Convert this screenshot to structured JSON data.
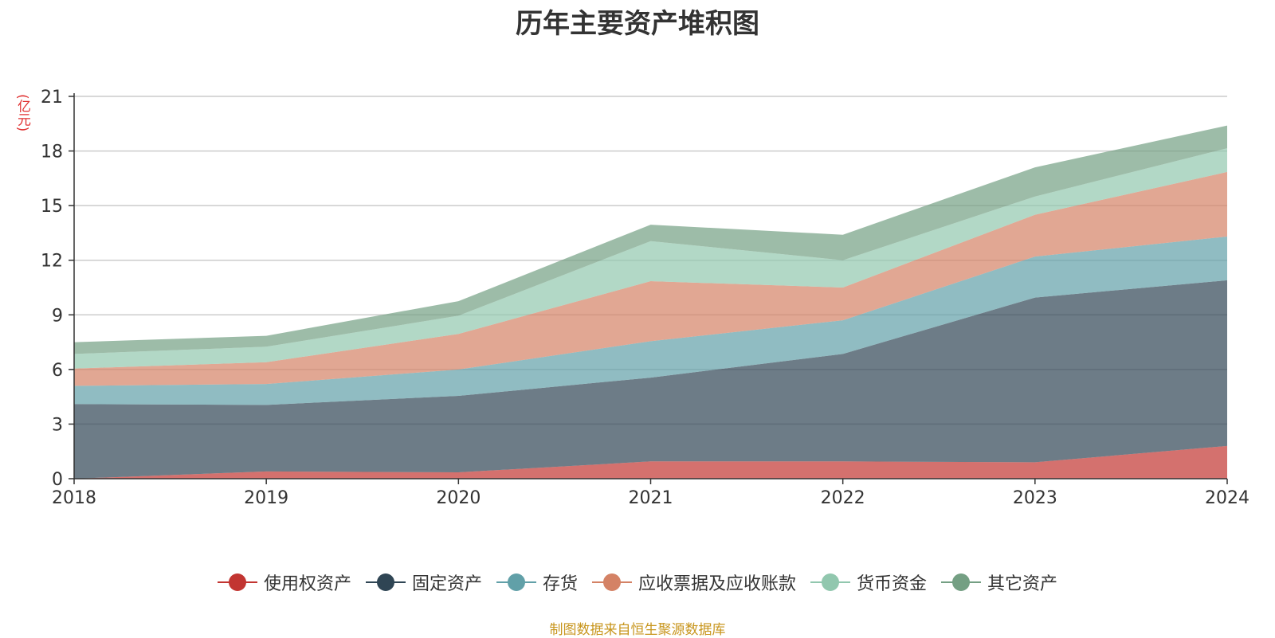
{
  "chart_data": {
    "type": "area",
    "stacked": true,
    "title": "历年主要资产堆积图",
    "ylabel": "(亿元)",
    "x": [
      "2018",
      "2019",
      "2020",
      "2021",
      "2022",
      "2023",
      "2024"
    ],
    "yticks": [
      "0",
      "3",
      "6",
      "9",
      "12",
      "15",
      "18",
      "21"
    ],
    "ylim": [
      0,
      21
    ],
    "grid": true,
    "legend_position": "bottom",
    "series": [
      {
        "name": "使用权资产",
        "color": "#c23531",
        "values": [
          0.0,
          0.4,
          0.35,
          0.95,
          0.95,
          0.9,
          1.8
        ]
      },
      {
        "name": "固定资产",
        "color": "#2f4554",
        "values": [
          4.1,
          3.65,
          4.2,
          4.6,
          5.9,
          9.05,
          9.1
        ]
      },
      {
        "name": "存货",
        "color": "#61a0a8",
        "values": [
          1.0,
          1.15,
          1.45,
          2.0,
          1.85,
          2.25,
          2.4
        ]
      },
      {
        "name": "应收票据及应收账款",
        "color": "#d48265",
        "values": [
          0.95,
          1.2,
          1.95,
          3.3,
          1.8,
          2.3,
          3.55
        ]
      },
      {
        "name": "货币资金",
        "color": "#91c7ae",
        "values": [
          0.8,
          0.85,
          1.0,
          2.2,
          1.5,
          1.0,
          1.3
        ]
      },
      {
        "name": "其它资产",
        "color": "#749f83",
        "values": [
          0.65,
          0.6,
          0.8,
          0.9,
          1.4,
          1.6,
          1.25
        ]
      }
    ]
  },
  "source_text": "制图数据来自恒生聚源数据库"
}
